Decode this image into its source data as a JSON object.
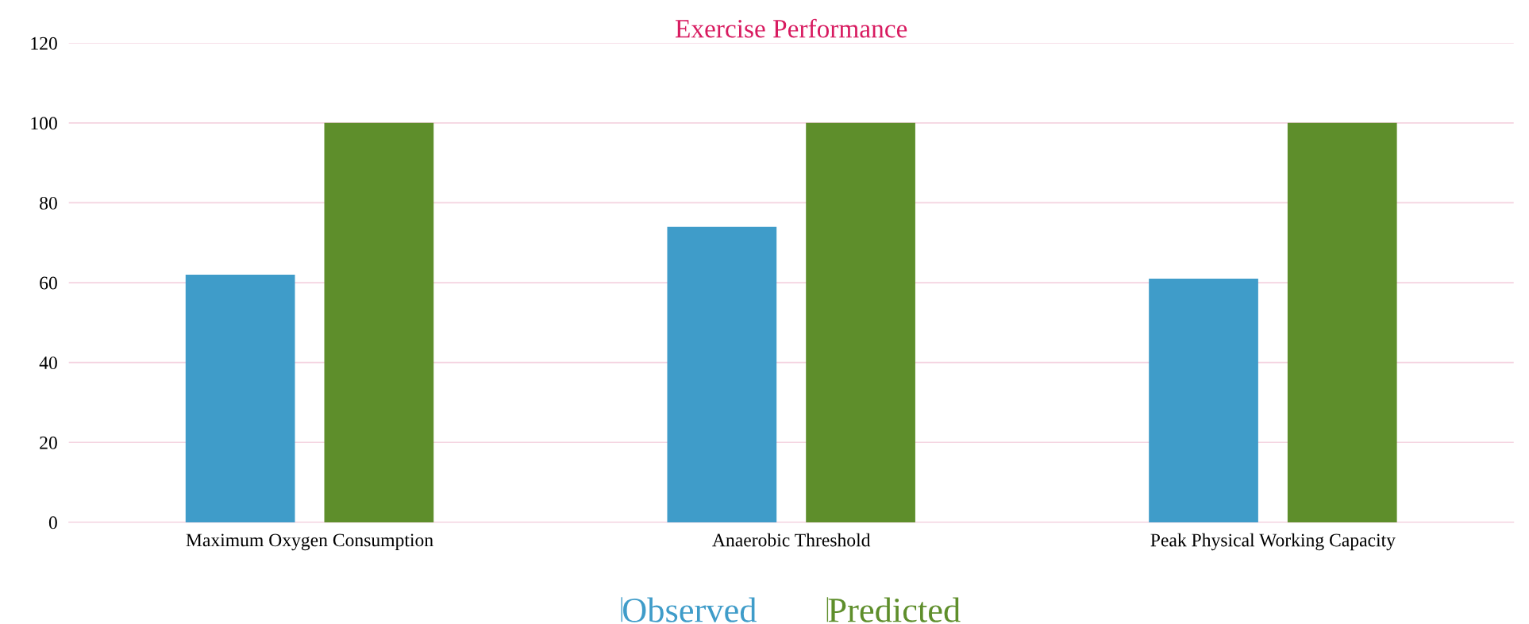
{
  "chart_data": {
    "type": "bar",
    "title": "Exercise Performance",
    "categories": [
      "Maximum Oxygen Consumption",
      "Anaerobic Threshold",
      "Peak Physical Working Capacity"
    ],
    "series": [
      {
        "name": "Observed",
        "color": "#3f9cc9",
        "values": [
          62,
          74,
          61
        ]
      },
      {
        "name": "Predicted",
        "color": "#5e8e2b",
        "values": [
          100,
          100,
          100
        ]
      }
    ],
    "ylim": [
      0,
      120
    ],
    "yticks": [
      0,
      20,
      40,
      60,
      80,
      100,
      120
    ],
    "grid": "y",
    "legend": "bottom"
  }
}
